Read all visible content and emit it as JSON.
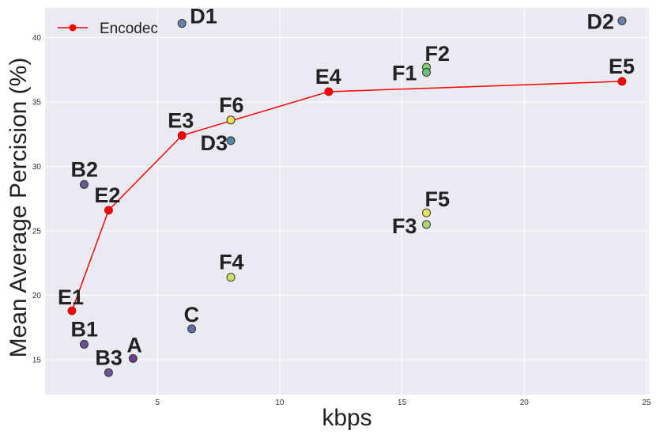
{
  "chart_data": {
    "type": "scatter",
    "title": "",
    "xlabel": "kbps",
    "ylabel": "Mean Average Percision (%)",
    "xlim": [
      0.4,
      25.1
    ],
    "ylim": [
      12.3,
      42.3
    ],
    "xticks": [
      5,
      10,
      15,
      20,
      25
    ],
    "yticks": [
      15,
      20,
      25,
      30,
      35,
      40
    ],
    "grid": true,
    "legend": {
      "position": "top-left",
      "entries": [
        "Encodec"
      ]
    },
    "series": [
      {
        "name": "Encodec",
        "kind": "line",
        "color": "#ff0000",
        "points": [
          {
            "label": "E1",
            "x": 1.5,
            "y": 18.8
          },
          {
            "label": "E2",
            "x": 3,
            "y": 26.6
          },
          {
            "label": "E3",
            "x": 6,
            "y": 32.4
          },
          {
            "label": "E4",
            "x": 12,
            "y": 35.8
          },
          {
            "label": "E5",
            "x": 24,
            "y": 36.6
          }
        ]
      }
    ],
    "points": [
      {
        "label": "D1",
        "x": 6,
        "y": 41.1,
        "color": "#6b82a8"
      },
      {
        "label": "D2",
        "x": 24,
        "y": 41.3,
        "color": "#6b82a8"
      },
      {
        "label": "F2",
        "x": 16,
        "y": 37.7,
        "color": "#88cf72"
      },
      {
        "label": "F1",
        "x": 16,
        "y": 37.3,
        "color": "#6fc27e"
      },
      {
        "label": "F6",
        "x": 8,
        "y": 33.6,
        "color": "#f0dc50"
      },
      {
        "label": "D3",
        "x": 8,
        "y": 32.0,
        "color": "#4f86a0"
      },
      {
        "label": "B2",
        "x": 2,
        "y": 28.6,
        "color": "#6a5596"
      },
      {
        "label": "F5",
        "x": 16,
        "y": 26.4,
        "color": "#e4e85a"
      },
      {
        "label": "F3",
        "x": 16,
        "y": 25.5,
        "color": "#aed474"
      },
      {
        "label": "F4",
        "x": 8,
        "y": 21.4,
        "color": "#cfe06a"
      },
      {
        "label": "C",
        "x": 6.4,
        "y": 17.4,
        "color": "#6272a8"
      },
      {
        "label": "B1",
        "x": 2,
        "y": 16.2,
        "color": "#6a4f98"
      },
      {
        "label": "A",
        "x": 4,
        "y": 15.1,
        "color": "#6a3d8c"
      },
      {
        "label": "B3",
        "x": 3,
        "y": 14.0,
        "color": "#6a5596"
      }
    ],
    "colors": {
      "plot_background": "#eaeaf2",
      "grid": "#ffffff",
      "encodec": "#ff0000"
    }
  }
}
